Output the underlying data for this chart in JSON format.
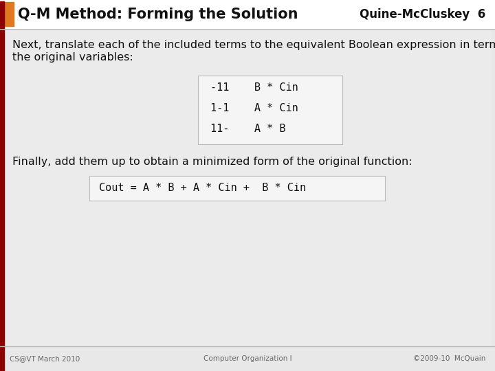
{
  "title_left": "Q-M Method: Forming the Solution",
  "title_right": "Quine-McCluskey  6",
  "orange_color": "#E07820",
  "dark_red_color": "#8B0000",
  "bg_color": "#E8E8E8",
  "header_bg": "#FFFFFF",
  "content_bg": "#EBEBEB",
  "box_bg": "#F5F5F5",
  "box_border": "#BBBBBB",
  "body_text1_line1": "Next, translate each of the included terms to the equivalent Boolean expression in terms of",
  "body_text1_line2": "the original variables:",
  "table_lines": [
    "-11    B * Cin",
    "1-1    A * Cin",
    "11-    A * B"
  ],
  "body_text2": "Finally, add them up to obtain a minimized form of the original function:",
  "cout_line": "Cout = A * B + A * Cin +  B * Cin",
  "footer_left": "CS@VT March 2010",
  "footer_center": "Computer Organization I",
  "footer_right": "©2009-10  McQuain",
  "title_fontsize": 15,
  "body_fontsize": 11.5,
  "mono_fontsize": 11,
  "footer_fontsize": 7.5
}
